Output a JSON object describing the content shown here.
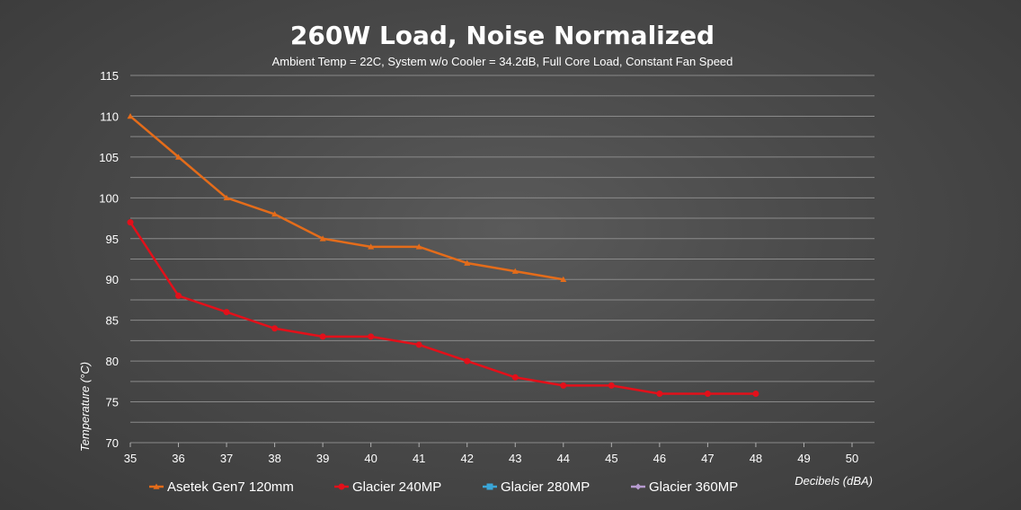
{
  "chart_data": {
    "type": "line",
    "title": "260W Load, Noise Normalized",
    "subtitle": "Ambient Temp = 22C, System w/o Cooler = 34.2dB, Full Core Load, Constant Fan Speed",
    "xlabel": "Decibels (dBA)",
    "ylabel": "Temperature (°C)",
    "xlim": [
      35,
      50
    ],
    "ylim": [
      70,
      115
    ],
    "x_ticks": [
      "35",
      "36",
      "37",
      "38",
      "39",
      "40",
      "41",
      "42",
      "43",
      "44",
      "45",
      "46",
      "47",
      "48",
      "49",
      "50"
    ],
    "y_ticks": [
      "70",
      "75",
      "80",
      "85",
      "90",
      "95",
      "100",
      "105",
      "110",
      "115"
    ],
    "grid": true,
    "legend_position": "bottom",
    "series": [
      {
        "name": "Asetek Gen7 120mm",
        "color": "#e46c1a",
        "marker": "triangle",
        "x": [
          35,
          36,
          37,
          38,
          39,
          40,
          41,
          42,
          43,
          44
        ],
        "y": [
          110,
          105,
          100,
          98,
          95,
          94,
          94,
          92,
          91,
          90
        ]
      },
      {
        "name": "Glacier 240MP",
        "color": "#e3101a",
        "marker": "circle",
        "x": [
          35,
          36,
          37,
          38,
          39,
          40,
          41,
          42,
          43,
          44,
          45,
          46,
          47,
          48
        ],
        "y": [
          97,
          88,
          86,
          84,
          83,
          83,
          82,
          80,
          78,
          77,
          77,
          76,
          76,
          76
        ]
      },
      {
        "name": "Glacier 280MP",
        "color": "#3aa6d8",
        "marker": "square",
        "x": [],
        "y": []
      },
      {
        "name": "Glacier 360MP",
        "color": "#b79bd0",
        "marker": "diamond",
        "x": [],
        "y": []
      }
    ]
  }
}
